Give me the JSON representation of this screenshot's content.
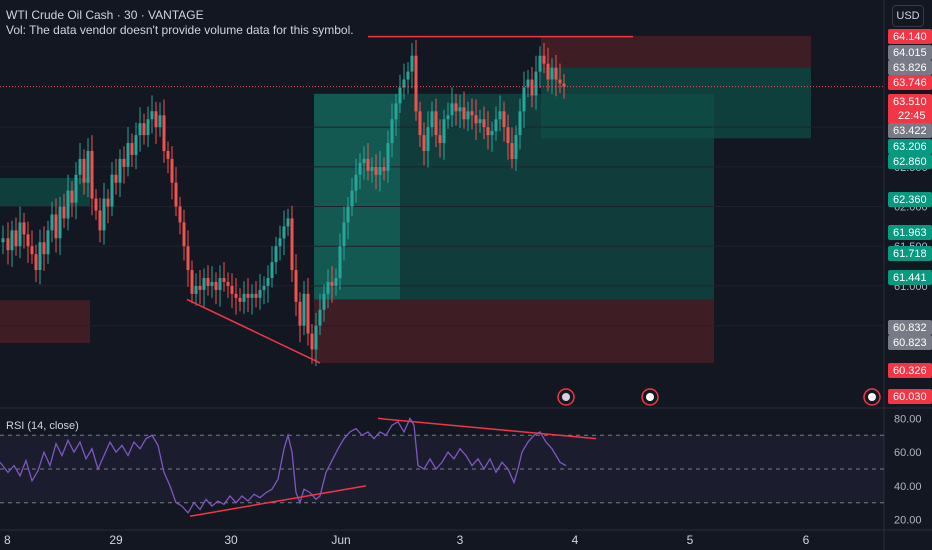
{
  "legend": {
    "symbol_line": "WTI Crude Oil Cash · 30 · VANTAGE",
    "volume_note": "Vol: The data vendor doesn't provide volume data for this symbol."
  },
  "currency_button": "USD",
  "rsi_title": "RSI (14, close)",
  "colors": {
    "background": "#131722",
    "up": "#26a69a",
    "down": "#ef5350",
    "trendline": "#f23645",
    "rsi": "#7e57c2",
    "target_zone": "#0f4e47",
    "stop_zone": "#4a1f25"
  },
  "chart_data": [
    {
      "type": "candlestick",
      "instrument": "WTI Crude Oil Cash",
      "interval": "30",
      "x_tick_labels": [
        "8",
        "29",
        "30",
        "Jun",
        "3",
        "4",
        "5",
        "6"
      ],
      "y_tick_labels": [
        "63.000",
        "62.500",
        "62.000",
        "61.500",
        "61.000",
        "60.500"
      ],
      "ylim": [
        59.5,
        64.35
      ],
      "price_tags": [
        {
          "value": "64.140",
          "kind": "red"
        },
        {
          "value": "64.015",
          "kind": "gray"
        },
        {
          "value": "63.826",
          "kind": "gray"
        },
        {
          "value": "63.746",
          "kind": "red"
        },
        {
          "value": "63.510",
          "sub": "22:45",
          "kind": "red"
        },
        {
          "value": "63.422",
          "kind": "gray"
        },
        {
          "value": "63.206",
          "kind": "green"
        },
        {
          "value": "62.860",
          "kind": "green"
        },
        {
          "value": "62.360",
          "kind": "green"
        },
        {
          "value": "61.963",
          "kind": "green"
        },
        {
          "value": "61.718",
          "kind": "green"
        },
        {
          "value": "61.441",
          "kind": "green"
        },
        {
          "value": "60.832",
          "kind": "gray"
        },
        {
          "value": "60.823",
          "kind": "gray"
        },
        {
          "value": "60.326",
          "kind": "red"
        },
        {
          "value": "60.030",
          "kind": "red"
        }
      ],
      "current_price": 63.51,
      "close_path": [
        [
          0,
          61.55
        ],
        [
          6,
          61.6
        ],
        [
          10,
          61.45
        ],
        [
          14,
          61.7
        ],
        [
          18,
          61.5
        ],
        [
          22,
          61.8
        ],
        [
          26,
          61.65
        ],
        [
          30,
          61.5
        ],
        [
          34,
          61.4
        ],
        [
          38,
          61.2
        ],
        [
          42,
          61.55
        ],
        [
          46,
          61.4
        ],
        [
          50,
          61.7
        ],
        [
          54,
          61.9
        ],
        [
          58,
          61.6
        ],
        [
          62,
          62.0
        ],
        [
          66,
          61.85
        ],
        [
          70,
          62.2
        ],
        [
          74,
          62.05
        ],
        [
          78,
          62.4
        ],
        [
          82,
          62.6
        ],
        [
          86,
          62.3
        ],
        [
          90,
          62.7
        ],
        [
          94,
          62.1
        ],
        [
          98,
          61.95
        ],
        [
          102,
          61.7
        ],
        [
          106,
          62.1
        ],
        [
          110,
          62.0
        ],
        [
          114,
          62.4
        ],
        [
          118,
          62.3
        ],
        [
          122,
          62.6
        ],
        [
          126,
          62.5
        ],
        [
          130,
          62.8
        ],
        [
          134,
          62.65
        ],
        [
          138,
          62.9
        ],
        [
          142,
          63.05
        ],
        [
          146,
          62.9
        ],
        [
          150,
          63.1
        ],
        [
          154,
          63.2
        ],
        [
          158,
          63.0
        ],
        [
          162,
          63.15
        ],
        [
          166,
          62.7
        ],
        [
          170,
          62.6
        ],
        [
          174,
          62.3
        ],
        [
          178,
          62.0
        ],
        [
          182,
          61.8
        ],
        [
          186,
          61.5
        ],
        [
          190,
          61.2
        ],
        [
          194,
          60.9
        ],
        [
          198,
          61.0
        ],
        [
          202,
          60.95
        ],
        [
          206,
          61.1
        ],
        [
          210,
          61.0
        ],
        [
          214,
          61.05
        ],
        [
          218,
          60.95
        ],
        [
          222,
          61.1
        ],
        [
          226,
          61.05
        ],
        [
          230,
          61.0
        ],
        [
          234,
          60.9
        ],
        [
          238,
          60.85
        ],
        [
          242,
          60.8
        ],
        [
          246,
          60.9
        ],
        [
          250,
          60.85
        ],
        [
          254,
          60.9
        ],
        [
          258,
          60.85
        ],
        [
          262,
          60.95
        ],
        [
          266,
          61.0
        ],
        [
          270,
          61.1
        ],
        [
          274,
          61.3
        ],
        [
          278,
          61.5
        ],
        [
          282,
          61.6
        ],
        [
          286,
          61.75
        ],
        [
          290,
          61.85
        ],
        [
          294,
          61.2
        ],
        [
          298,
          60.8
        ],
        [
          302,
          60.5
        ],
        [
          306,
          60.9
        ],
        [
          310,
          60.4
        ],
        [
          314,
          60.2
        ],
        [
          318,
          60.5
        ],
        [
          322,
          60.7
        ],
        [
          326,
          60.9
        ],
        [
          330,
          61.05
        ],
        [
          334,
          61.0
        ],
        [
          338,
          61.1
        ],
        [
          342,
          61.5
        ],
        [
          346,
          61.8
        ],
        [
          350,
          62.0
        ],
        [
          354,
          62.2
        ],
        [
          358,
          62.4
        ],
        [
          362,
          62.55
        ],
        [
          366,
          62.6
        ],
        [
          370,
          62.45
        ],
        [
          374,
          62.5
        ],
        [
          378,
          62.4
        ],
        [
          382,
          62.5
        ],
        [
          386,
          62.45
        ],
        [
          390,
          62.8
        ],
        [
          394,
          63.1
        ],
        [
          398,
          63.3
        ],
        [
          402,
          63.5
        ],
        [
          406,
          63.6
        ],
        [
          410,
          63.7
        ],
        [
          414,
          63.9
        ],
        [
          418,
          63.2
        ],
        [
          422,
          62.9
        ],
        [
          426,
          62.7
        ],
        [
          430,
          63.0
        ],
        [
          434,
          63.2
        ],
        [
          438,
          62.9
        ],
        [
          442,
          62.8
        ],
        [
          446,
          63.1
        ],
        [
          450,
          63.15
        ],
        [
          454,
          63.3
        ],
        [
          458,
          63.2
        ],
        [
          462,
          63.25
        ],
        [
          466,
          63.1
        ],
        [
          470,
          63.2
        ],
        [
          474,
          63.15
        ],
        [
          478,
          63.05
        ],
        [
          482,
          63.1
        ],
        [
          486,
          63.0
        ],
        [
          490,
          62.9
        ],
        [
          494,
          62.95
        ],
        [
          498,
          63.1
        ],
        [
          502,
          63.2
        ],
        [
          506,
          63.0
        ],
        [
          510,
          62.8
        ],
        [
          514,
          62.6
        ],
        [
          518,
          62.9
        ],
        [
          522,
          63.2
        ],
        [
          526,
          63.5
        ],
        [
          530,
          63.6
        ],
        [
          534,
          63.4
        ],
        [
          538,
          63.7
        ],
        [
          542,
          63.9
        ],
        [
          546,
          63.8
        ],
        [
          550,
          63.6
        ],
        [
          554,
          63.75
        ],
        [
          558,
          63.6
        ],
        [
          562,
          63.55
        ],
        [
          566,
          63.51
        ]
      ],
      "trendlines": [
        {
          "from": [
            368,
            64.14
          ],
          "to": [
            633,
            64.14
          ]
        },
        {
          "from": [
            187,
            60.83
          ],
          "to": [
            320,
            60.03
          ]
        }
      ],
      "rsi": {
        "ylim": [
          15,
          85
        ],
        "y_tick_labels": [
          "80.00",
          "60.00",
          "40.00",
          "20.00"
        ],
        "levels": [
          70,
          50,
          30
        ],
        "trendlines": [
          {
            "from": [
              190,
              22
            ],
            "to": [
              366,
              40
            ]
          },
          {
            "from": [
              378,
              80
            ],
            "to": [
              596,
              68
            ]
          }
        ],
        "path": [
          [
            0,
            54
          ],
          [
            8,
            48
          ],
          [
            14,
            52
          ],
          [
            20,
            46
          ],
          [
            26,
            55
          ],
          [
            32,
            43
          ],
          [
            38,
            49
          ],
          [
            44,
            60
          ],
          [
            50,
            52
          ],
          [
            56,
            65
          ],
          [
            62,
            58
          ],
          [
            68,
            67
          ],
          [
            74,
            60
          ],
          [
            80,
            66
          ],
          [
            86,
            56
          ],
          [
            92,
            62
          ],
          [
            98,
            50
          ],
          [
            104,
            58
          ],
          [
            110,
            66
          ],
          [
            116,
            60
          ],
          [
            122,
            64
          ],
          [
            128,
            58
          ],
          [
            134,
            66
          ],
          [
            140,
            62
          ],
          [
            146,
            68
          ],
          [
            152,
            70
          ],
          [
            158,
            64
          ],
          [
            164,
            48
          ],
          [
            170,
            40
          ],
          [
            176,
            30
          ],
          [
            182,
            28
          ],
          [
            188,
            24
          ],
          [
            194,
            30
          ],
          [
            200,
            26
          ],
          [
            206,
            32
          ],
          [
            212,
            28
          ],
          [
            218,
            31
          ],
          [
            224,
            29
          ],
          [
            230,
            34
          ],
          [
            236,
            30
          ],
          [
            242,
            34
          ],
          [
            248,
            31
          ],
          [
            254,
            35
          ],
          [
            260,
            33
          ],
          [
            266,
            36
          ],
          [
            272,
            38
          ],
          [
            278,
            44
          ],
          [
            284,
            62
          ],
          [
            288,
            70
          ],
          [
            292,
            60
          ],
          [
            296,
            36
          ],
          [
            300,
            30
          ],
          [
            304,
            38
          ],
          [
            310,
            36
          ],
          [
            316,
            32
          ],
          [
            320,
            34
          ],
          [
            326,
            48
          ],
          [
            332,
            55
          ],
          [
            338,
            62
          ],
          [
            344,
            68
          ],
          [
            350,
            72
          ],
          [
            356,
            74
          ],
          [
            362,
            70
          ],
          [
            368,
            72
          ],
          [
            374,
            68
          ],
          [
            380,
            72
          ],
          [
            386,
            70
          ],
          [
            392,
            76
          ],
          [
            398,
            78
          ],
          [
            404,
            72
          ],
          [
            410,
            80
          ],
          [
            414,
            76
          ],
          [
            418,
            52
          ],
          [
            424,
            50
          ],
          [
            430,
            56
          ],
          [
            436,
            50
          ],
          [
            442,
            54
          ],
          [
            448,
            60
          ],
          [
            454,
            56
          ],
          [
            460,
            62
          ],
          [
            466,
            58
          ],
          [
            472,
            52
          ],
          [
            478,
            56
          ],
          [
            484,
            50
          ],
          [
            490,
            56
          ],
          [
            496,
            48
          ],
          [
            502,
            54
          ],
          [
            508,
            50
          ],
          [
            514,
            42
          ],
          [
            518,
            50
          ],
          [
            522,
            60
          ],
          [
            528,
            66
          ],
          [
            534,
            70
          ],
          [
            540,
            72
          ],
          [
            546,
            66
          ],
          [
            552,
            62
          ],
          [
            556,
            58
          ],
          [
            560,
            54
          ],
          [
            566,
            52
          ]
        ]
      }
    }
  ]
}
